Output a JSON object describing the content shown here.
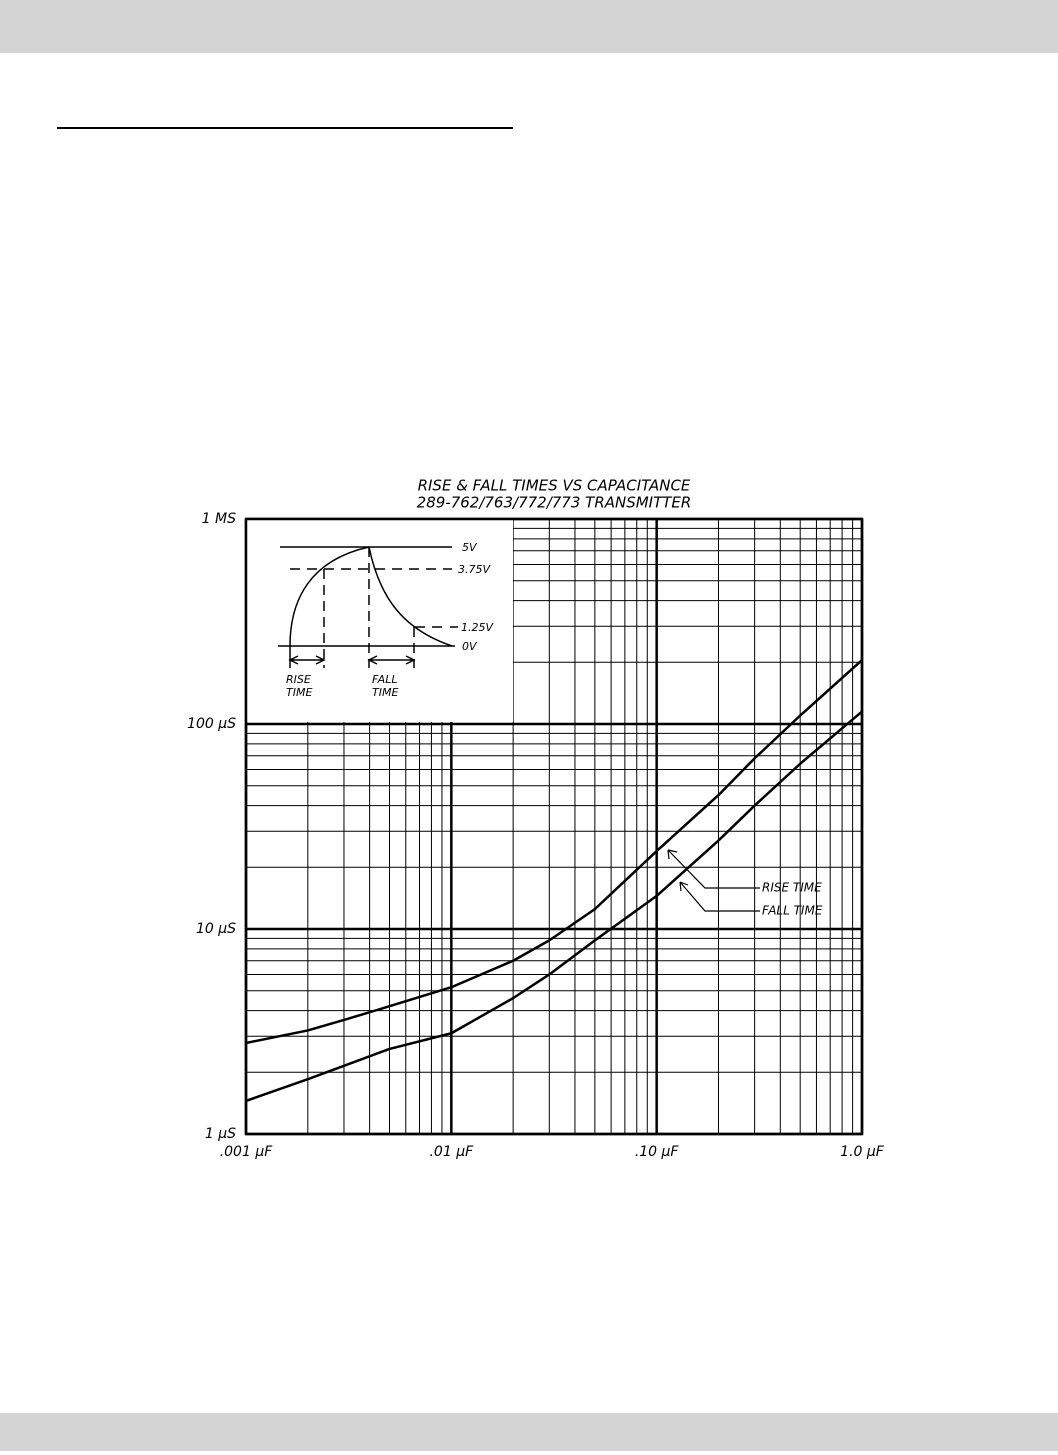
{
  "chart_data": {
    "type": "line",
    "title": "RISE & FALL TIMES VS CAPACITANCE",
    "subtitle": "289-762/763/772/773 TRANSMITTER",
    "x": [
      0.001,
      0.002,
      0.003,
      0.005,
      0.01,
      0.02,
      0.03,
      0.05,
      0.1,
      0.2,
      0.3,
      0.5,
      1.0
    ],
    "series": [
      {
        "name": "RISE TIME",
        "color": "#000000",
        "values": [
          2.78,
          3.2,
          3.6,
          4.2,
          5.2,
          7.0,
          8.8,
          12.5,
          24,
          45,
          68,
          110,
          205
        ]
      },
      {
        "name": "FALL TIME",
        "color": "#000000",
        "values": [
          1.45,
          1.85,
          2.15,
          2.6,
          3.1,
          4.6,
          6.0,
          8.8,
          14.5,
          27,
          40,
          64,
          115
        ]
      }
    ],
    "xscale": "log",
    "yscale": "log",
    "xlim": [
      0.001,
      1.0
    ],
    "ylim": [
      1,
      1000
    ],
    "xticks": [
      {
        "value": 0.001,
        "label": ".001 µF"
      },
      {
        "value": 0.01,
        "label": ".01 µF"
      },
      {
        "value": 0.1,
        "label": ".10 µF"
      },
      {
        "value": 1.0,
        "label": "1.0 µF"
      }
    ],
    "yticks": [
      {
        "value": 1,
        "label": "1 µS"
      },
      {
        "value": 10,
        "label": "10 µS"
      },
      {
        "value": 100,
        "label": "100 µS"
      },
      {
        "value": 1000,
        "label": "1 MS"
      }
    ],
    "grid": true,
    "minor_grid": true,
    "inset": {
      "level_labels": [
        "5V",
        "3.75V",
        "1.25V",
        "0V"
      ],
      "rise_label": [
        "RISE",
        "TIME"
      ],
      "fall_label": [
        "FALL",
        "TIME"
      ]
    }
  }
}
